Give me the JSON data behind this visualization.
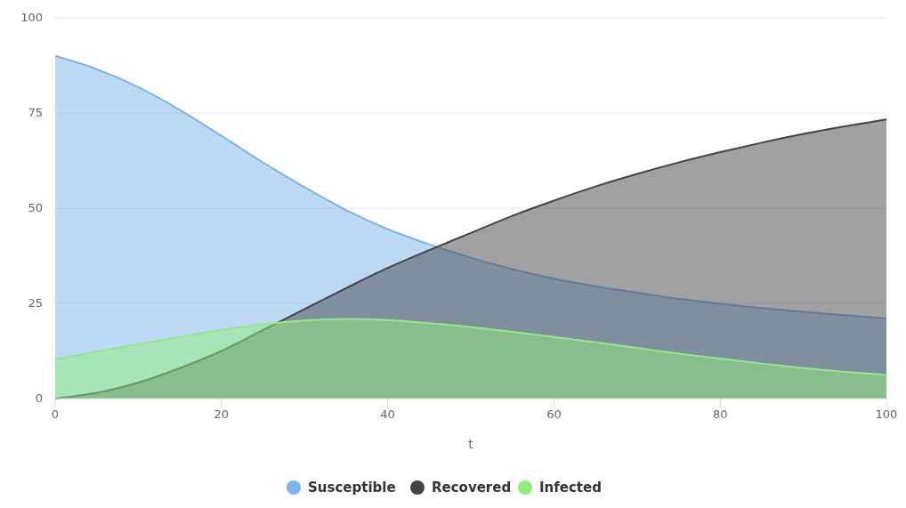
{
  "chart_data": {
    "type": "area",
    "xlabel": "t",
    "x": [
      0,
      5,
      10,
      15,
      20,
      25,
      30,
      35,
      40,
      45,
      50,
      55,
      60,
      65,
      70,
      75,
      80,
      85,
      90,
      95,
      100
    ],
    "xlim": [
      0,
      100
    ],
    "xticks": [
      0,
      20,
      40,
      60,
      80,
      100
    ],
    "ylim": [
      0,
      100
    ],
    "yticks": [
      0,
      25,
      50,
      75,
      100
    ],
    "grid": "y",
    "legend": "bottom",
    "series": [
      {
        "name": "Susceptible",
        "color": "#7cb5ec",
        "values": [
          90,
          86.5,
          81.8,
          75.8,
          69,
          62,
          55.5,
          49.5,
          44.5,
          40.5,
          37,
          34,
          31.5,
          29.5,
          27.8,
          26.2,
          24.9,
          23.8,
          22.8,
          21.9,
          21
        ]
      },
      {
        "name": "Recovered",
        "color": "#434348",
        "values": [
          0,
          1.5,
          4.2,
          8,
          12.5,
          18,
          23.5,
          29,
          34.3,
          39,
          43.5,
          48,
          52,
          55.7,
          59,
          62,
          64.7,
          67.2,
          69.5,
          71.5,
          73.3
        ]
      },
      {
        "name": "Infected",
        "color": "#90ed7d",
        "values": [
          10.3,
          12.3,
          14.3,
          16.2,
          18,
          19.5,
          20.5,
          20.9,
          20.6,
          19.8,
          18.8,
          17.5,
          16.2,
          14.8,
          13.3,
          11.8,
          10.5,
          9.2,
          8,
          7,
          6.2
        ]
      }
    ]
  }
}
